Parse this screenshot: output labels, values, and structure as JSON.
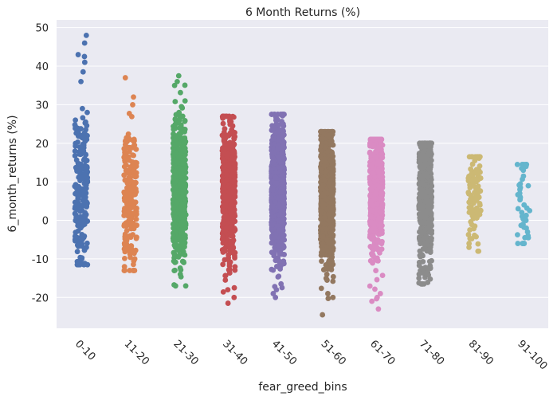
{
  "chart_data": {
    "type": "scatter",
    "subtype": "strip",
    "title": "6 Month Returns (%)",
    "xlabel": "fear_greed_bins",
    "ylabel": "6_month_returns (%)",
    "ylim": [
      -28,
      52
    ],
    "yticks": [
      -20,
      -10,
      0,
      10,
      20,
      30,
      40,
      50
    ],
    "grid": true,
    "legend": "none",
    "background": "#eaeaf2",
    "categories": [
      "0-10",
      "11-20",
      "21-30",
      "31-40",
      "41-50",
      "51-60",
      "61-70",
      "71-80",
      "81-90",
      "91-100"
    ],
    "series": [
      {
        "category": "0-10",
        "color": "#4c72b0",
        "count": 200,
        "min": -11.5,
        "max": 48,
        "center": 8,
        "spread": 11,
        "highlights": [
          48,
          46,
          43,
          42.5,
          41,
          36,
          29,
          28,
          26,
          25.5,
          24,
          22,
          21,
          19,
          18,
          -10,
          -11.5,
          -7,
          -5
        ]
      },
      {
        "category": "11-20",
        "color": "#dd8452",
        "count": 220,
        "min": -13,
        "max": 37,
        "center": 6,
        "spread": 9,
        "highlights": [
          37,
          32,
          30,
          21,
          20.5,
          -12,
          -13,
          -10
        ]
      },
      {
        "category": "21-30",
        "color": "#55a868",
        "count": 600,
        "min": -17,
        "max": 37.5,
        "center": 8,
        "spread": 9,
        "highlights": [
          37.5,
          36,
          35,
          31,
          29.5,
          28,
          -14,
          -17
        ]
      },
      {
        "category": "31-40",
        "color": "#c44e52",
        "count": 700,
        "min": -21.5,
        "max": 27,
        "center": 8,
        "spread": 8.5,
        "highlights": [
          27,
          26.5,
          26,
          -17.5,
          -18,
          -20,
          -21.5
        ]
      },
      {
        "category": "41-50",
        "color": "#8172b3",
        "count": 900,
        "min": -20,
        "max": 27.5,
        "center": 8,
        "spread": 8.5,
        "highlights": [
          27.5,
          25,
          24,
          -18,
          -19,
          -20
        ]
      },
      {
        "category": "51-60",
        "color": "#937860",
        "count": 1000,
        "min": -24.5,
        "max": 23,
        "center": 7,
        "spread": 8.5,
        "highlights": [
          23,
          22.5,
          22,
          -19,
          -20,
          -24.5
        ]
      },
      {
        "category": "61-70",
        "color": "#da8bc3",
        "count": 600,
        "min": -23,
        "max": 21,
        "center": 7,
        "spread": 8,
        "highlights": [
          21,
          20,
          19.5,
          -19,
          -20,
          -21,
          -23
        ]
      },
      {
        "category": "71-80",
        "color": "#8c8c8c",
        "count": 550,
        "min": -16.5,
        "max": 20,
        "center": 6,
        "spread": 8,
        "highlights": [
          20,
          19.5,
          19,
          -14,
          -15,
          -16.5
        ]
      },
      {
        "category": "81-90",
        "color": "#ccb974",
        "count": 110,
        "min": -8,
        "max": 16.5,
        "center": 7,
        "spread": 6.5,
        "highlights": [
          16.5,
          16,
          15.5,
          -6,
          -7,
          -8
        ]
      },
      {
        "category": "91-100",
        "color": "#64b5cd",
        "count": 45,
        "min": -6,
        "max": 14.5,
        "center": 4,
        "spread": 6,
        "highlights": [
          14.5,
          14,
          13.5,
          13,
          8.5,
          8,
          7,
          6,
          4,
          1,
          0,
          -1,
          -2,
          -4,
          -4.5,
          -6
        ]
      }
    ]
  }
}
